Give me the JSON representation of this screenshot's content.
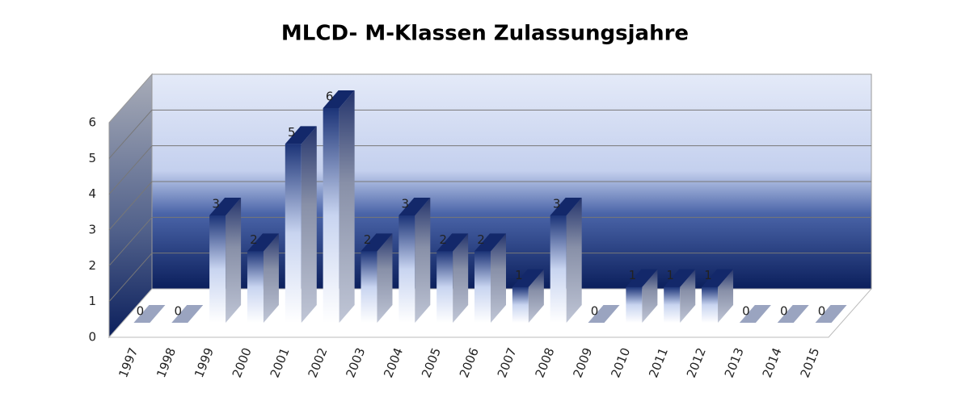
{
  "chart_data": {
    "type": "bar3d",
    "title": "MLCD- M-Klassen Zulassungsjahre",
    "categories": [
      "1997",
      "1998",
      "1999",
      "2000",
      "2001",
      "2002",
      "2003",
      "2004",
      "2005",
      "2006",
      "2007",
      "2008",
      "2009",
      "2010",
      "2011",
      "2012",
      "2013",
      "2014",
      "2015"
    ],
    "values": [
      0,
      0,
      3,
      2,
      5,
      6,
      2,
      3,
      2,
      2,
      1,
      3,
      0,
      1,
      1,
      1,
      0,
      0,
      0
    ],
    "ylim": [
      0,
      6
    ],
    "yticks": [
      0,
      1,
      2,
      3,
      4,
      5,
      6
    ],
    "grid": true
  }
}
